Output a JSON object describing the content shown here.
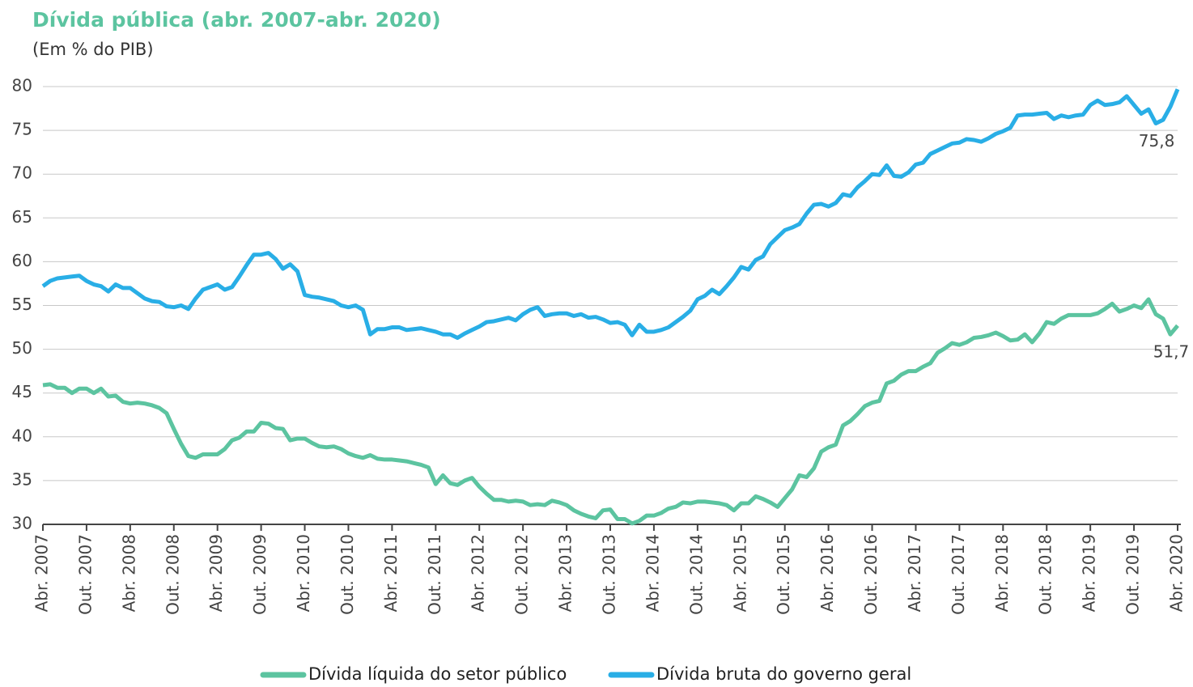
{
  "chart_data": {
    "type": "line",
    "title": "Dívida pública (abr. 2007-abr. 2020)",
    "subtitle": "(Em % do PIB)",
    "categories": [
      "Abr. 2007",
      null,
      null,
      null,
      null,
      null,
      "Out. 2007",
      null,
      null,
      null,
      null,
      null,
      "Abr. 2008",
      null,
      null,
      null,
      null,
      null,
      "Out. 2008",
      null,
      null,
      null,
      null,
      null,
      "Abr. 2009",
      null,
      null,
      null,
      null,
      null,
      "Out. 2009",
      null,
      null,
      null,
      null,
      null,
      "Abr. 2010",
      null,
      null,
      null,
      null,
      null,
      "Out. 2010",
      null,
      null,
      null,
      null,
      null,
      "Abr. 2011",
      null,
      null,
      null,
      null,
      null,
      "Out. 2011",
      null,
      null,
      null,
      null,
      null,
      "Abr. 2012",
      null,
      null,
      null,
      null,
      null,
      "Out. 2012",
      null,
      null,
      null,
      null,
      null,
      "Abr. 2013",
      null,
      null,
      null,
      null,
      null,
      "Out. 2013",
      null,
      null,
      null,
      null,
      null,
      "Abr. 2014",
      null,
      null,
      null,
      null,
      null,
      "Out. 2014",
      null,
      null,
      null,
      null,
      null,
      "Abr. 2015",
      null,
      null,
      null,
      null,
      null,
      "Out. 2015",
      null,
      null,
      null,
      null,
      null,
      "Abr. 2016",
      null,
      null,
      null,
      null,
      null,
      "Out. 2016",
      null,
      null,
      null,
      null,
      null,
      "Abr. 2017",
      null,
      null,
      null,
      null,
      null,
      "Out. 2017",
      null,
      null,
      null,
      null,
      null,
      "Abr. 2018",
      null,
      null,
      null,
      null,
      null,
      "Out. 2018",
      null,
      null,
      null,
      null,
      null,
      "Abr. 2019",
      null,
      null,
      null,
      null,
      null,
      "Out. 2019",
      null,
      null,
      null,
      null,
      null,
      "Abr. 2020"
    ],
    "series": [
      {
        "name": "Dívida líquida do setor público",
        "color": "#5cc4a0",
        "values": [
          45.9,
          46.0,
          45.6,
          45.6,
          45.0,
          45.5,
          45.5,
          45.0,
          45.5,
          44.6,
          44.7,
          44.0,
          43.8,
          43.9,
          43.8,
          43.6,
          43.3,
          42.7,
          40.9,
          39.2,
          37.8,
          37.6,
          38.0,
          38.0,
          38.0,
          38.6,
          39.6,
          39.9,
          40.6,
          40.6,
          41.6,
          41.5,
          41.0,
          40.9,
          39.6,
          39.8,
          39.8,
          39.3,
          38.9,
          38.8,
          38.9,
          38.6,
          38.1,
          37.8,
          37.6,
          37.9,
          37.5,
          37.4,
          37.4,
          37.3,
          37.2,
          37.0,
          36.8,
          36.5,
          34.6,
          35.6,
          34.7,
          34.5,
          35.0,
          35.3,
          34.3,
          33.5,
          32.8,
          32.8,
          32.6,
          32.7,
          32.6,
          32.2,
          32.3,
          32.2,
          32.7,
          32.5,
          32.2,
          31.6,
          31.2,
          30.9,
          30.7,
          31.6,
          31.7,
          30.6,
          30.6,
          30.1,
          30.4,
          31.0,
          31.0,
          31.3,
          31.8,
          32.0,
          32.5,
          32.4,
          32.6,
          32.6,
          32.5,
          32.4,
          32.2,
          31.6,
          32.4,
          32.4,
          33.2,
          32.9,
          32.5,
          32.0,
          33.0,
          34.0,
          35.6,
          35.4,
          36.4,
          38.3,
          38.8,
          39.1,
          41.3,
          41.8,
          42.6,
          43.5,
          43.9,
          44.1,
          46.1,
          46.4,
          47.1,
          47.5,
          47.5,
          48.0,
          48.4,
          49.6,
          50.1,
          50.7,
          50.5,
          50.8,
          51.3,
          51.4,
          51.6,
          51.9,
          51.5,
          51.0,
          51.1,
          51.7,
          50.8,
          51.8,
          53.1,
          52.9,
          53.5,
          53.9,
          53.9,
          53.9,
          53.9,
          54.1,
          54.6,
          55.2,
          54.3,
          54.6,
          55.0,
          54.7,
          55.7,
          54.0,
          53.5,
          51.7,
          52.7
        ],
        "value_labels": [
          null,
          null,
          null,
          null,
          null,
          null,
          null,
          null,
          null,
          null,
          null,
          null,
          null,
          null,
          null,
          null,
          null,
          null,
          null,
          null,
          null,
          null,
          null,
          null,
          null,
          null,
          null,
          null,
          null,
          null,
          null,
          null,
          null,
          null,
          null,
          null,
          null,
          null,
          null,
          null,
          null,
          null,
          null,
          null,
          null,
          null,
          null,
          null,
          null,
          null,
          null,
          null,
          null,
          null,
          null,
          null,
          null,
          null,
          null,
          null,
          null,
          null,
          null,
          null,
          null,
          null,
          null,
          null,
          null,
          null,
          null,
          null,
          null,
          null,
          null,
          null,
          null,
          null,
          null,
          null,
          null,
          null,
          null,
          null,
          null,
          null,
          null,
          null,
          null,
          null,
          null,
          null,
          null,
          null,
          null,
          null,
          null,
          null,
          null,
          null,
          null,
          null,
          null,
          null,
          null,
          null,
          null,
          null,
          null,
          null,
          null,
          null,
          null,
          null,
          null,
          null,
          null,
          null,
          null,
          null,
          null,
          null,
          null,
          null,
          null,
          null,
          null,
          null,
          null,
          null,
          null,
          null,
          null,
          null,
          null,
          null,
          null,
          null,
          null,
          null,
          null,
          null,
          null,
          null,
          null,
          null,
          null,
          null,
          null,
          null,
          null,
          null,
          null,
          null,
          null,
          "51,7",
          null
        ]
      },
      {
        "name": "Dívida bruta do governo geral",
        "color": "#29aee6",
        "values": [
          57.2,
          57.8,
          58.1,
          58.2,
          58.3,
          58.4,
          57.8,
          57.4,
          57.2,
          56.6,
          57.4,
          57.0,
          57.0,
          56.4,
          55.8,
          55.5,
          55.4,
          54.9,
          54.8,
          55.0,
          54.6,
          55.8,
          56.8,
          57.1,
          57.4,
          56.8,
          57.1,
          58.3,
          59.6,
          60.8,
          60.8,
          61.0,
          60.3,
          59.2,
          59.7,
          58.9,
          56.2,
          56.0,
          55.9,
          55.7,
          55.5,
          55.0,
          54.8,
          55.0,
          54.5,
          51.7,
          52.3,
          52.3,
          52.5,
          52.5,
          52.2,
          52.3,
          52.4,
          52.2,
          52.0,
          51.7,
          51.7,
          51.3,
          51.8,
          52.2,
          52.6,
          53.1,
          53.2,
          53.4,
          53.6,
          53.3,
          54.0,
          54.5,
          54.8,
          53.8,
          54.0,
          54.1,
          54.1,
          53.8,
          54.0,
          53.6,
          53.7,
          53.4,
          53.0,
          53.1,
          52.8,
          51.6,
          52.8,
          52.0,
          52.0,
          52.2,
          52.5,
          53.1,
          53.7,
          54.4,
          55.7,
          56.1,
          56.8,
          56.3,
          57.2,
          58.2,
          59.4,
          59.1,
          60.2,
          60.6,
          62.0,
          62.8,
          63.6,
          63.9,
          64.3,
          65.5,
          66.5,
          66.6,
          66.3,
          66.7,
          67.7,
          67.5,
          68.5,
          69.2,
          70.0,
          69.9,
          71.0,
          69.8,
          69.7,
          70.2,
          71.1,
          71.3,
          72.3,
          72.7,
          73.1,
          73.5,
          73.6,
          74.0,
          73.9,
          73.7,
          74.1,
          74.6,
          74.9,
          75.3,
          76.7,
          76.8,
          76.8,
          76.9,
          77.0,
          76.3,
          76.7,
          76.5,
          76.7,
          76.8,
          77.9,
          78.4,
          77.9,
          78.0,
          78.2,
          78.9,
          77.9,
          76.9,
          77.4,
          75.8,
          76.2,
          77.7,
          79.7
        ],
        "value_labels": [
          null,
          null,
          null,
          null,
          null,
          null,
          null,
          null,
          null,
          null,
          null,
          null,
          null,
          null,
          null,
          null,
          null,
          null,
          null,
          null,
          null,
          null,
          null,
          null,
          null,
          null,
          null,
          null,
          null,
          null,
          null,
          null,
          null,
          null,
          null,
          null,
          null,
          null,
          null,
          null,
          null,
          null,
          null,
          null,
          null,
          null,
          null,
          null,
          null,
          null,
          null,
          null,
          null,
          null,
          null,
          null,
          null,
          null,
          null,
          null,
          null,
          null,
          null,
          null,
          null,
          null,
          null,
          null,
          null,
          null,
          null,
          null,
          null,
          null,
          null,
          null,
          null,
          null,
          null,
          null,
          null,
          null,
          null,
          null,
          null,
          null,
          null,
          null,
          null,
          null,
          null,
          null,
          null,
          null,
          null,
          null,
          null,
          null,
          null,
          null,
          null,
          null,
          null,
          null,
          null,
          null,
          null,
          null,
          null,
          null,
          null,
          null,
          null,
          null,
          null,
          null,
          null,
          null,
          null,
          null,
          null,
          null,
          null,
          null,
          null,
          null,
          null,
          null,
          null,
          null,
          null,
          null,
          null,
          null,
          null,
          null,
          null,
          null,
          null,
          null,
          null,
          null,
          null,
          null,
          null,
          null,
          null,
          null,
          null,
          null,
          null,
          null,
          null,
          "75,8",
          null,
          null,
          null
        ]
      }
    ],
    "ylim": [
      30,
      80
    ],
    "yticks": [
      30,
      35,
      40,
      45,
      50,
      55,
      60,
      65,
      70,
      75,
      80
    ],
    "grid": true
  }
}
